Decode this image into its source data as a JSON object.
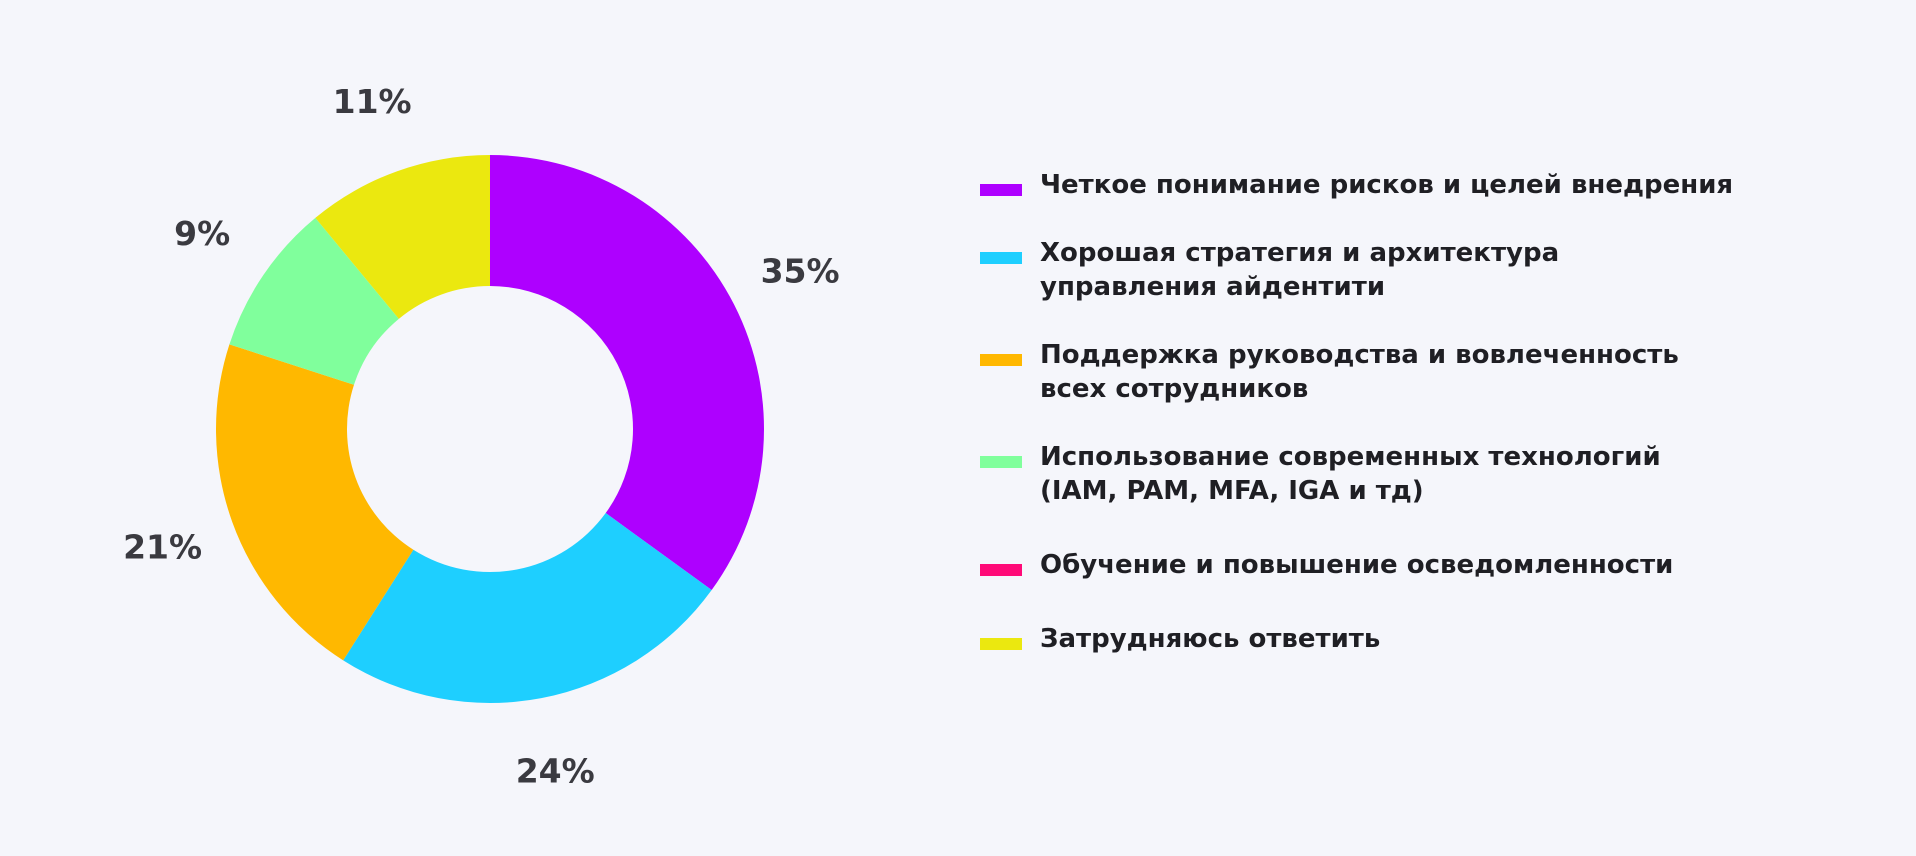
{
  "chart_data": {
    "type": "pie",
    "donut": true,
    "title": "",
    "slices": [
      {
        "label": "Четкое понимание рисков и целей внедрения",
        "value": 35,
        "display": "35%",
        "color": "#ae00ff"
      },
      {
        "label": "Хорошая стратегия и архитектура\nуправления айдентити",
        "value": 24,
        "display": "24%",
        "color": "#1ecfff"
      },
      {
        "label": "Поддержка руководства и вовлеченность\nвсех сотрудников",
        "value": 21,
        "display": "21%",
        "color": "#ffb800"
      },
      {
        "label": "Использование современных технологий\n(IAM, PAM, MFA, IGA и тд)",
        "value": 9,
        "display": "9%",
        "color": "#80ff9c"
      },
      {
        "label": "Обучение и повышение осведомленности",
        "value": 0,
        "display": "",
        "color": "#ff0a78"
      },
      {
        "label": "Затрудняюсь ответить",
        "value": 11,
        "display": "11%",
        "color": "#ebe80f"
      }
    ],
    "start_angle": "top",
    "direction": "clockwise",
    "legend_position": "right"
  }
}
